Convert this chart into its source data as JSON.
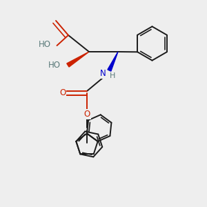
{
  "bg_color": "#eeeeee",
  "atom_colors": {
    "O": "#cc2200",
    "N": "#0000cc",
    "C": "#1a1a1a",
    "H": "#5a7a7a"
  },
  "bond_color": "#1a1a1a",
  "line_width": 1.4
}
